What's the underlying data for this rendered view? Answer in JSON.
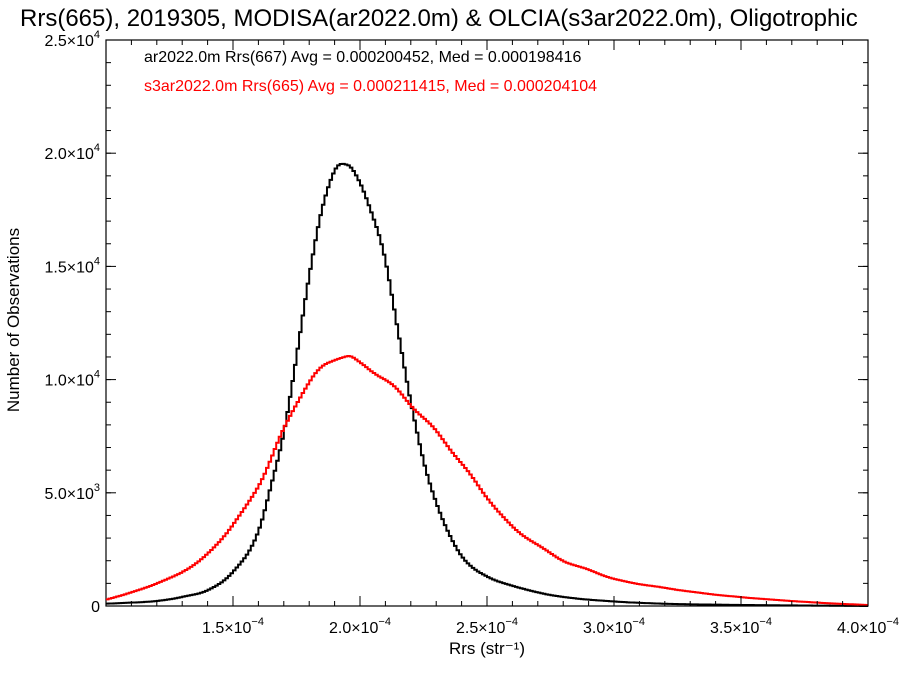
{
  "chart_data": {
    "type": "line",
    "title": "Rrs(665), 2019305, MODISA(ar2022.0m) & OLCIA(s3ar2022.0m), Oligotrophic",
    "xlabel": "Rrs (str⁻¹)",
    "ylabel": "Number of Observations",
    "xlim": [
      0.0001,
      0.0004
    ],
    "ylim": [
      0,
      25000
    ],
    "grid": false,
    "x_ticks": [
      {
        "value": 0.00015,
        "mant": "1.5",
        "exp": "-4"
      },
      {
        "value": 0.0002,
        "mant": "2.0",
        "exp": "-4"
      },
      {
        "value": 0.00025,
        "mant": "2.5",
        "exp": "-4"
      },
      {
        "value": 0.0003,
        "mant": "3.0",
        "exp": "-4"
      },
      {
        "value": 0.00035,
        "mant": "3.5",
        "exp": "-4"
      },
      {
        "value": 0.0004,
        "mant": "4.0",
        "exp": "-4"
      }
    ],
    "y_ticks": [
      {
        "value": 0,
        "mant": "0",
        "exp": ""
      },
      {
        "value": 5000,
        "mant": "5.0",
        "exp": "3"
      },
      {
        "value": 10000,
        "mant": "1.0",
        "exp": "4"
      },
      {
        "value": 15000,
        "mant": "1.5",
        "exp": "4"
      },
      {
        "value": 20000,
        "mant": "2.0",
        "exp": "4"
      },
      {
        "value": 25000,
        "mant": "2.5",
        "exp": "4"
      }
    ],
    "annotations": [
      {
        "text": "ar2022.0m Rrs(667) Avg = 0.000200452, Med = 0.000198416",
        "color": "#000000"
      },
      {
        "text": "s3ar2022.0m Rrs(665) Avg = 0.000211415, Med = 0.000204104",
        "color": "#ff0000"
      }
    ],
    "series": [
      {
        "color": "#000000",
        "x": [
          0.0001,
          0.00011,
          0.00012,
          0.00013,
          0.00014,
          0.00015,
          0.00016,
          0.000165,
          0.00017,
          0.000175,
          0.00018,
          0.000185,
          0.00019,
          0.000195,
          0.0002,
          0.000205,
          0.00021,
          0.000215,
          0.00022,
          0.000225,
          0.00023,
          0.000235,
          0.00024,
          0.00025,
          0.00026,
          0.00027,
          0.00028,
          0.0003,
          0.00032,
          0.00034,
          0.0004
        ],
        "values": [
          100,
          150,
          220,
          400,
          700,
          1500,
          3300,
          5300,
          7700,
          11000,
          14500,
          17600,
          19200,
          19400,
          18800,
          17200,
          15200,
          12200,
          9000,
          6400,
          4600,
          3200,
          2200,
          1300,
          900,
          600,
          400,
          200,
          100,
          60,
          0
        ]
      },
      {
        "color": "#ff0000",
        "x": [
          0.0001,
          0.00011,
          0.00012,
          0.00013,
          0.00014,
          0.00015,
          0.00016,
          0.00017,
          0.00018,
          0.00019,
          0.000195,
          0.0002,
          0.00021,
          0.00022,
          0.00023,
          0.00024,
          0.00025,
          0.00026,
          0.00027,
          0.00028,
          0.00029,
          0.0003,
          0.00032,
          0.00034,
          0.00036,
          0.00038,
          0.0004
        ],
        "values": [
          280,
          600,
          1000,
          1500,
          2300,
          3600,
          5300,
          7800,
          9900,
          10900,
          11050,
          10700,
          10000,
          8900,
          7700,
          6300,
          4800,
          3500,
          2700,
          2000,
          1600,
          1200,
          800,
          500,
          300,
          150,
          40
        ]
      }
    ]
  }
}
